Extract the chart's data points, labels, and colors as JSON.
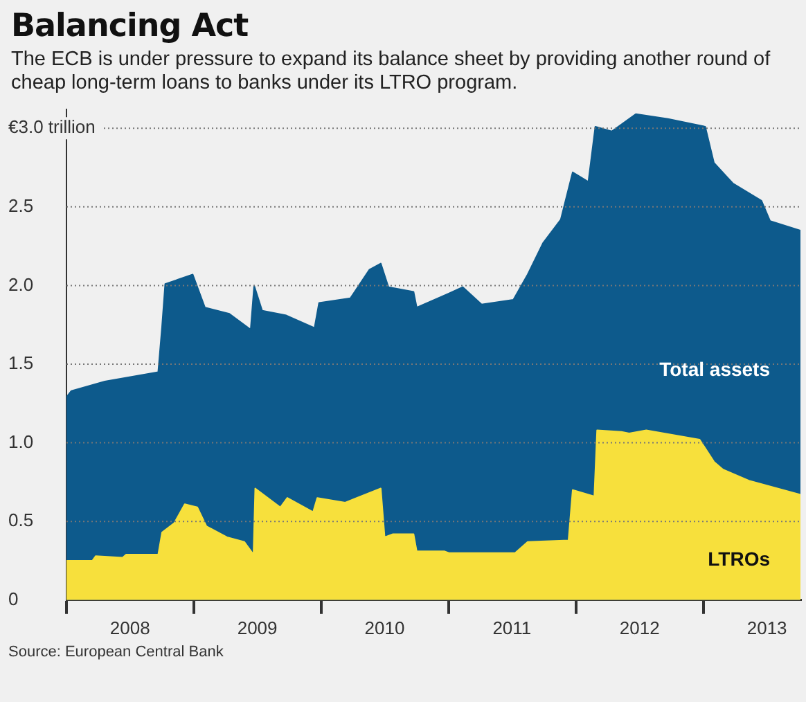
{
  "chart_data": {
    "type": "area",
    "title": "Balancing Act",
    "subtitle": "The ECB is under pressure to expand its balance sheet by providing another round of cheap long-term loans to banks under its LTRO program.",
    "annotations": [
      "Source: European Central Bank"
    ],
    "xlim": [
      "2008-01-01",
      "2013-10-05"
    ],
    "xticks": [
      {
        "value": "2008-01-01",
        "label": null
      },
      {
        "value": "2008-07-01",
        "label": "2008"
      },
      {
        "value": "2009-01-01",
        "label": null
      },
      {
        "value": "2009-07-01",
        "label": "2009"
      },
      {
        "value": "2010-01-01",
        "label": null
      },
      {
        "value": "2010-07-01",
        "label": "2010"
      },
      {
        "value": "2011-01-01",
        "label": null
      },
      {
        "value": "2011-07-01",
        "label": "2011"
      },
      {
        "value": "2012-01-01",
        "label": null
      },
      {
        "value": "2012-07-01",
        "label": "2012"
      },
      {
        "value": "2013-01-01",
        "label": null
      },
      {
        "value": "2013-07-01",
        "label": "2013"
      }
    ],
    "ylim": [
      0,
      3.12
    ],
    "yticks": [
      0,
      {
        "value": 0.5,
        "label": "0.5"
      },
      {
        "value": 1,
        "label": "1.0"
      },
      {
        "value": 1.5,
        "label": "1.5"
      },
      {
        "value": 2,
        "label": "2.0"
      },
      {
        "value": 2.5,
        "label": "2.5"
      },
      {
        "value": 3,
        "label": "€3.0 trillion"
      }
    ],
    "grid": "y",
    "legend": false,
    "series": [
      {
        "name": "Total assets",
        "color": "#0d5a8c",
        "x": [
          "2008-01-01",
          "2008-01-15",
          "2008-04-20",
          "2008-09-20",
          "2008-10-01",
          "2008-10-10",
          "2008-12-28",
          "2009-02-01",
          "2009-04-12",
          "2009-06-12",
          "2009-06-22",
          "2009-07-15",
          "2009-09-22",
          "2009-12-12",
          "2009-12-25",
          "2010-03-25",
          "2010-05-18",
          "2010-06-20",
          "2010-07-12",
          "2010-09-22",
          "2010-10-01",
          "2011-01-01",
          "2011-02-10",
          "2011-04-05",
          "2011-07-05",
          "2011-08-15",
          "2011-09-28",
          "2011-11-18",
          "2011-12-22",
          "2012-02-05",
          "2012-02-25",
          "2012-04-12",
          "2012-06-20",
          "2012-09-20",
          "2013-01-05",
          "2013-01-30",
          "2013-03-25",
          "2013-06-15",
          "2013-07-10",
          "2013-10-05"
        ],
        "values": [
          1.29,
          1.33,
          1.39,
          1.45,
          1.74,
          2.01,
          2.07,
          1.86,
          1.82,
          1.72,
          2.0,
          1.84,
          1.81,
          1.73,
          1.89,
          1.92,
          2.1,
          2.14,
          1.99,
          1.96,
          1.86,
          1.95,
          1.99,
          1.88,
          1.91,
          2.07,
          2.27,
          2.42,
          2.72,
          2.66,
          3.01,
          2.98,
          3.09,
          3.06,
          3.01,
          2.78,
          2.65,
          2.54,
          2.41,
          2.35
        ]
      },
      {
        "name": "LTROs",
        "color": "#f7e03c",
        "x": [
          "2008-01-01",
          "2008-03-15",
          "2008-03-25",
          "2008-06-10",
          "2008-06-20",
          "2008-09-20",
          "2008-10-01",
          "2008-11-05",
          "2008-12-05",
          "2009-01-10",
          "2009-02-05",
          "2009-04-05",
          "2009-05-25",
          "2009-06-20",
          "2009-06-25",
          "2009-09-05",
          "2009-09-25",
          "2009-12-08",
          "2009-12-20",
          "2010-03-10",
          "2010-06-20",
          "2010-07-01",
          "2010-07-25",
          "2010-09-22",
          "2010-10-01",
          "2010-12-20",
          "2011-01-01",
          "2011-07-10",
          "2011-08-15",
          "2011-12-10",
          "2011-12-22",
          "2012-02-22",
          "2012-03-01",
          "2012-05-10",
          "2012-06-01",
          "2012-07-20",
          "2012-12-20",
          "2013-01-30",
          "2013-02-25",
          "2013-05-10",
          "2013-10-05"
        ],
        "values": [
          0.25,
          0.25,
          0.28,
          0.27,
          0.29,
          0.29,
          0.43,
          0.49,
          0.61,
          0.59,
          0.47,
          0.4,
          0.37,
          0.29,
          0.71,
          0.59,
          0.65,
          0.56,
          0.65,
          0.62,
          0.71,
          0.4,
          0.42,
          0.42,
          0.31,
          0.31,
          0.3,
          0.3,
          0.37,
          0.38,
          0.7,
          0.66,
          1.08,
          1.07,
          1.06,
          1.08,
          1.02,
          0.88,
          0.83,
          0.76,
          0.67
        ]
      }
    ]
  }
}
